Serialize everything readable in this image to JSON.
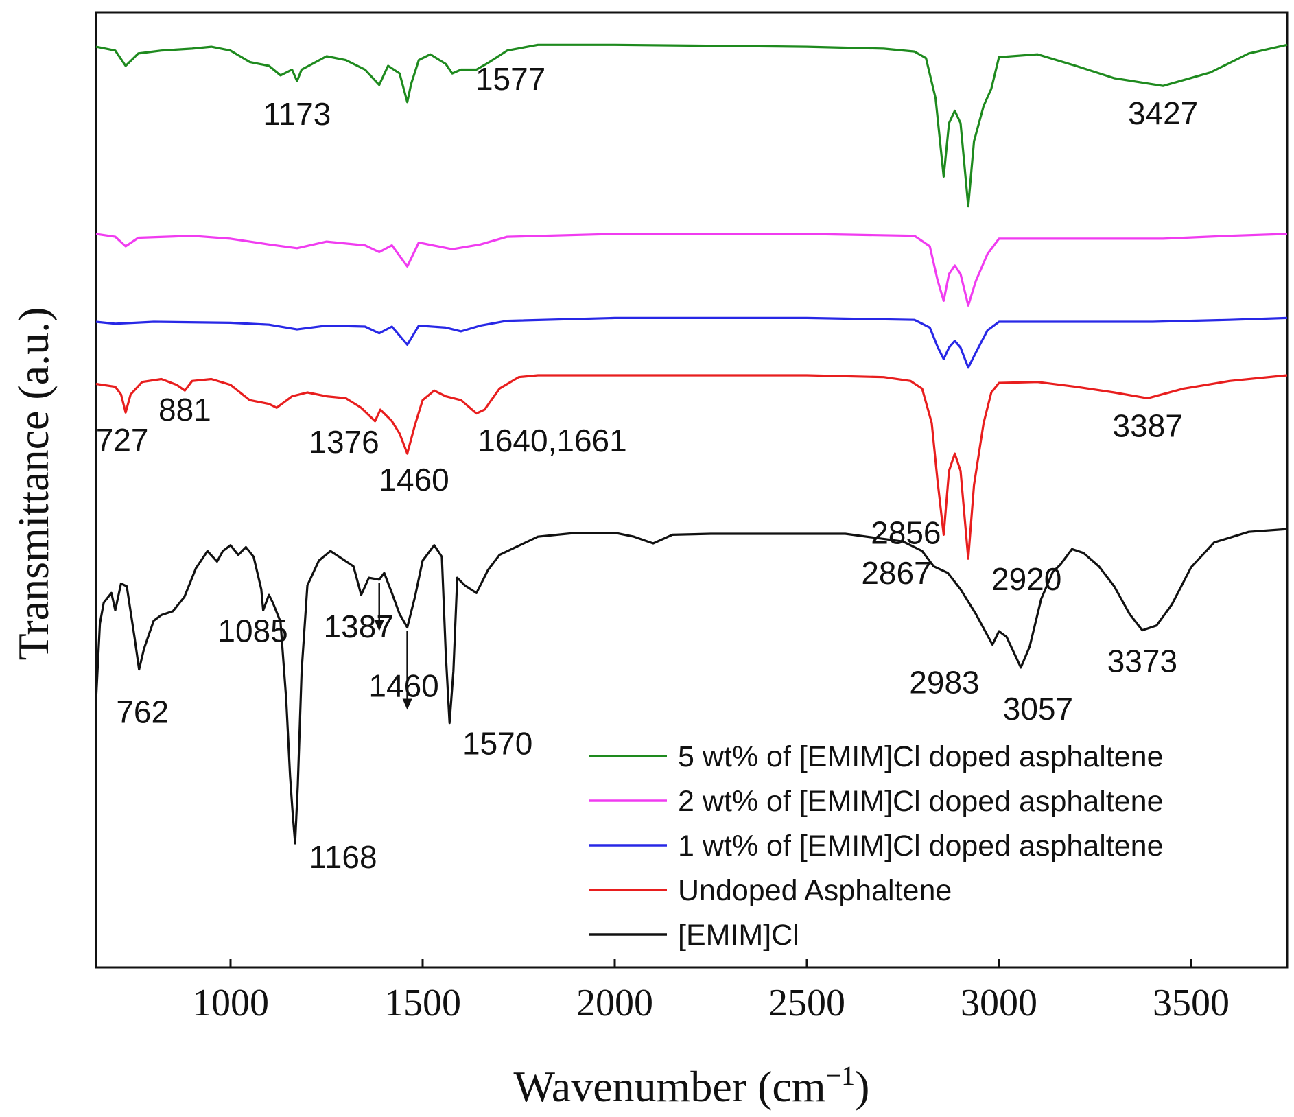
{
  "chart_data": {
    "type": "line",
    "title": "",
    "xlabel": "Wavenumber (cm",
    "xlabel_sup": "−1",
    "xlabel_close": ")",
    "ylabel": "Transmittance (a.u.)",
    "xlim": [
      650,
      3750
    ],
    "xticks": [
      1000,
      1500,
      2000,
      2500,
      3000,
      3500
    ],
    "xtick_labels": [
      "1000",
      "1500",
      "2000",
      "2500",
      "3000",
      "3500"
    ],
    "ylim": [
      0,
      100
    ],
    "yticks": [],
    "grid": false,
    "legend_position": "bottom-right",
    "series": [
      {
        "name": "5 wt% of [EMIM]Cl doped asphaltene",
        "color": "#1e8a1e",
        "points": [
          [
            650,
            96.4
          ],
          [
            700,
            96.0
          ],
          [
            727,
            94.4
          ],
          [
            760,
            95.7
          ],
          [
            820,
            96.0
          ],
          [
            900,
            96.2
          ],
          [
            950,
            96.4
          ],
          [
            1000,
            96.0
          ],
          [
            1050,
            94.8
          ],
          [
            1100,
            94.4
          ],
          [
            1130,
            93.4
          ],
          [
            1160,
            94.0
          ],
          [
            1173,
            92.8
          ],
          [
            1185,
            94.0
          ],
          [
            1250,
            95.4
          ],
          [
            1300,
            95.0
          ],
          [
            1350,
            94.0
          ],
          [
            1387,
            92.4
          ],
          [
            1410,
            94.4
          ],
          [
            1440,
            93.6
          ],
          [
            1460,
            90.6
          ],
          [
            1470,
            92.5
          ],
          [
            1490,
            95.0
          ],
          [
            1520,
            95.6
          ],
          [
            1560,
            94.6
          ],
          [
            1577,
            93.6
          ],
          [
            1600,
            94.0
          ],
          [
            1640,
            94.0
          ],
          [
            1670,
            94.7
          ],
          [
            1720,
            96.0
          ],
          [
            1800,
            96.6
          ],
          [
            2000,
            96.6
          ],
          [
            2500,
            96.4
          ],
          [
            2700,
            96.2
          ],
          [
            2780,
            95.9
          ],
          [
            2810,
            95.2
          ],
          [
            2835,
            91.0
          ],
          [
            2856,
            82.8
          ],
          [
            2870,
            88.4
          ],
          [
            2885,
            89.7
          ],
          [
            2900,
            88.4
          ],
          [
            2920,
            79.7
          ],
          [
            2935,
            86.5
          ],
          [
            2960,
            90.2
          ],
          [
            2980,
            92.0
          ],
          [
            3000,
            95.3
          ],
          [
            3100,
            95.6
          ],
          [
            3200,
            94.4
          ],
          [
            3300,
            93.1
          ],
          [
            3427,
            92.3
          ],
          [
            3550,
            93.7
          ],
          [
            3650,
            95.7
          ],
          [
            3750,
            96.6
          ]
        ]
      },
      {
        "name": "2 wt% of [EMIM]Cl doped asphaltene",
        "color": "#f03cf0",
        "points": [
          [
            650,
            76.8
          ],
          [
            700,
            76.5
          ],
          [
            727,
            75.5
          ],
          [
            760,
            76.4
          ],
          [
            900,
            76.6
          ],
          [
            1000,
            76.3
          ],
          [
            1100,
            75.7
          ],
          [
            1173,
            75.3
          ],
          [
            1250,
            76.0
          ],
          [
            1350,
            75.6
          ],
          [
            1387,
            74.9
          ],
          [
            1420,
            75.6
          ],
          [
            1460,
            73.4
          ],
          [
            1490,
            75.9
          ],
          [
            1577,
            75.2
          ],
          [
            1650,
            75.7
          ],
          [
            1720,
            76.5
          ],
          [
            2000,
            76.8
          ],
          [
            2500,
            76.8
          ],
          [
            2780,
            76.6
          ],
          [
            2820,
            75.5
          ],
          [
            2840,
            72.0
          ],
          [
            2856,
            69.8
          ],
          [
            2870,
            72.6
          ],
          [
            2885,
            73.5
          ],
          [
            2900,
            72.6
          ],
          [
            2920,
            69.3
          ],
          [
            2940,
            71.9
          ],
          [
            2970,
            74.7
          ],
          [
            3000,
            76.3
          ],
          [
            3200,
            76.3
          ],
          [
            3427,
            76.3
          ],
          [
            3600,
            76.6
          ],
          [
            3750,
            76.8
          ]
        ]
      },
      {
        "name": "1 wt% of [EMIM]Cl doped asphaltene",
        "color": "#2828e6",
        "points": [
          [
            650,
            67.6
          ],
          [
            700,
            67.4
          ],
          [
            800,
            67.6
          ],
          [
            1000,
            67.5
          ],
          [
            1100,
            67.3
          ],
          [
            1173,
            66.8
          ],
          [
            1250,
            67.2
          ],
          [
            1350,
            67.1
          ],
          [
            1387,
            66.4
          ],
          [
            1420,
            67.1
          ],
          [
            1460,
            65.2
          ],
          [
            1490,
            67.2
          ],
          [
            1560,
            67.0
          ],
          [
            1600,
            66.6
          ],
          [
            1650,
            67.2
          ],
          [
            1720,
            67.7
          ],
          [
            2000,
            68.0
          ],
          [
            2500,
            68.0
          ],
          [
            2780,
            67.8
          ],
          [
            2820,
            67.0
          ],
          [
            2840,
            65.0
          ],
          [
            2856,
            63.7
          ],
          [
            2870,
            64.9
          ],
          [
            2885,
            65.6
          ],
          [
            2900,
            64.9
          ],
          [
            2920,
            62.8
          ],
          [
            2940,
            64.4
          ],
          [
            2970,
            66.7
          ],
          [
            3000,
            67.6
          ],
          [
            3200,
            67.6
          ],
          [
            3400,
            67.6
          ],
          [
            3600,
            67.8
          ],
          [
            3750,
            68.0
          ]
        ]
      },
      {
        "name": "Undoped Asphaltene",
        "color": "#e81e1e",
        "points": [
          [
            650,
            61.1
          ],
          [
            700,
            60.8
          ],
          [
            715,
            60.0
          ],
          [
            727,
            58.1
          ],
          [
            740,
            60.0
          ],
          [
            770,
            61.3
          ],
          [
            820,
            61.6
          ],
          [
            860,
            61.0
          ],
          [
            881,
            60.4
          ],
          [
            900,
            61.4
          ],
          [
            950,
            61.6
          ],
          [
            1000,
            61.0
          ],
          [
            1050,
            59.4
          ],
          [
            1100,
            59.0
          ],
          [
            1120,
            58.6
          ],
          [
            1160,
            59.8
          ],
          [
            1200,
            60.2
          ],
          [
            1250,
            59.8
          ],
          [
            1300,
            59.6
          ],
          [
            1340,
            58.6
          ],
          [
            1376,
            57.2
          ],
          [
            1390,
            58.4
          ],
          [
            1420,
            57.2
          ],
          [
            1440,
            55.9
          ],
          [
            1460,
            53.8
          ],
          [
            1480,
            56.8
          ],
          [
            1500,
            59.4
          ],
          [
            1530,
            60.4
          ],
          [
            1560,
            59.8
          ],
          [
            1600,
            59.4
          ],
          [
            1640,
            58.0
          ],
          [
            1661,
            58.4
          ],
          [
            1700,
            60.6
          ],
          [
            1750,
            61.8
          ],
          [
            1800,
            62.0
          ],
          [
            2000,
            62.0
          ],
          [
            2500,
            62.0
          ],
          [
            2700,
            61.8
          ],
          [
            2770,
            61.4
          ],
          [
            2800,
            60.6
          ],
          [
            2825,
            57.0
          ],
          [
            2840,
            51.0
          ],
          [
            2856,
            45.3
          ],
          [
            2870,
            52.0
          ],
          [
            2885,
            53.8
          ],
          [
            2900,
            52.0
          ],
          [
            2920,
            42.8
          ],
          [
            2935,
            50.5
          ],
          [
            2960,
            57.0
          ],
          [
            2980,
            60.2
          ],
          [
            3000,
            61.2
          ],
          [
            3100,
            61.3
          ],
          [
            3200,
            60.8
          ],
          [
            3300,
            60.2
          ],
          [
            3387,
            59.6
          ],
          [
            3480,
            60.6
          ],
          [
            3600,
            61.4
          ],
          [
            3750,
            62.0
          ]
        ]
      },
      {
        "name": "[EMIM]Cl",
        "color": "#111111",
        "points": [
          [
            650,
            28.0
          ],
          [
            660,
            36.0
          ],
          [
            670,
            38.2
          ],
          [
            690,
            39.2
          ],
          [
            700,
            37.4
          ],
          [
            715,
            40.2
          ],
          [
            730,
            39.9
          ],
          [
            750,
            34.6
          ],
          [
            762,
            31.2
          ],
          [
            775,
            33.4
          ],
          [
            800,
            36.3
          ],
          [
            820,
            36.9
          ],
          [
            850,
            37.3
          ],
          [
            880,
            38.8
          ],
          [
            910,
            41.8
          ],
          [
            940,
            43.6
          ],
          [
            965,
            42.5
          ],
          [
            980,
            43.6
          ],
          [
            1000,
            44.2
          ],
          [
            1020,
            43.2
          ],
          [
            1040,
            44.0
          ],
          [
            1060,
            43.0
          ],
          [
            1080,
            39.6
          ],
          [
            1085,
            37.4
          ],
          [
            1100,
            39.0
          ],
          [
            1110,
            38.2
          ],
          [
            1130,
            36.2
          ],
          [
            1145,
            28.0
          ],
          [
            1155,
            20.0
          ],
          [
            1162,
            16.0
          ],
          [
            1168,
            13.0
          ],
          [
            1175,
            19.0
          ],
          [
            1185,
            31.0
          ],
          [
            1200,
            40.0
          ],
          [
            1230,
            42.6
          ],
          [
            1260,
            43.6
          ],
          [
            1290,
            42.8
          ],
          [
            1320,
            42.0
          ],
          [
            1340,
            39.0
          ],
          [
            1360,
            40.8
          ],
          [
            1387,
            40.6
          ],
          [
            1400,
            41.3
          ],
          [
            1420,
            39.2
          ],
          [
            1440,
            37.0
          ],
          [
            1460,
            35.6
          ],
          [
            1480,
            38.8
          ],
          [
            1500,
            42.6
          ],
          [
            1530,
            44.2
          ],
          [
            1550,
            43.0
          ],
          [
            1560,
            33.0
          ],
          [
            1570,
            25.6
          ],
          [
            1580,
            31.0
          ],
          [
            1590,
            40.8
          ],
          [
            1610,
            40.0
          ],
          [
            1640,
            39.2
          ],
          [
            1670,
            41.6
          ],
          [
            1700,
            43.2
          ],
          [
            1800,
            45.1
          ],
          [
            1900,
            45.5
          ],
          [
            2000,
            45.5
          ],
          [
            2050,
            45.1
          ],
          [
            2100,
            44.4
          ],
          [
            2150,
            45.3
          ],
          [
            2250,
            45.4
          ],
          [
            2400,
            45.4
          ],
          [
            2600,
            45.4
          ],
          [
            2750,
            44.6
          ],
          [
            2800,
            43.6
          ],
          [
            2830,
            42.0
          ],
          [
            2867,
            41.3
          ],
          [
            2900,
            39.6
          ],
          [
            2940,
            37.0
          ],
          [
            2983,
            33.8
          ],
          [
            3000,
            35.2
          ],
          [
            3020,
            34.6
          ],
          [
            3057,
            31.4
          ],
          [
            3080,
            33.6
          ],
          [
            3110,
            38.6
          ],
          [
            3140,
            41.4
          ],
          [
            3160,
            42.2
          ],
          [
            3190,
            43.8
          ],
          [
            3220,
            43.4
          ],
          [
            3260,
            42.0
          ],
          [
            3300,
            39.9
          ],
          [
            3340,
            37.0
          ],
          [
            3373,
            35.3
          ],
          [
            3410,
            35.8
          ],
          [
            3450,
            38.0
          ],
          [
            3500,
            41.9
          ],
          [
            3560,
            44.5
          ],
          [
            3650,
            45.6
          ],
          [
            3750,
            45.9
          ]
        ]
      }
    ],
    "annotations": [
      {
        "text": "1173",
        "series": 0,
        "x": 1173
      },
      {
        "text": "1577",
        "series": 0,
        "x": 1577
      },
      {
        "text": "3427",
        "series": 0,
        "x": 3427
      },
      {
        "text": "727",
        "series": 3,
        "x": 727
      },
      {
        "text": "881",
        "series": 3,
        "x": 881
      },
      {
        "text": "1376",
        "series": 3,
        "x": 1376
      },
      {
        "text": "1460",
        "series": 3,
        "x": 1460
      },
      {
        "text": "1640,1661",
        "series": 3,
        "x": 1650
      },
      {
        "text": "2856",
        "series": 3,
        "x": 2856
      },
      {
        "text": "2920",
        "series": 3,
        "x": 2920
      },
      {
        "text": "3387",
        "series": 3,
        "x": 3387
      },
      {
        "text": "762",
        "series": 4,
        "x": 762
      },
      {
        "text": "1085",
        "series": 4,
        "x": 1085
      },
      {
        "text": "1168",
        "series": 4,
        "x": 1168
      },
      {
        "text": "1387",
        "series": 4,
        "x": 1387,
        "arrow": true
      },
      {
        "text": "1460",
        "series": 4,
        "x": 1460,
        "arrow": true
      },
      {
        "text": "1570",
        "series": 4,
        "x": 1570
      },
      {
        "text": "2867",
        "series": 4,
        "x": 2867
      },
      {
        "text": "2983",
        "series": 4,
        "x": 2983
      },
      {
        "text": "3057",
        "series": 4,
        "x": 3057
      },
      {
        "text": "3373",
        "series": 4,
        "x": 3373
      }
    ]
  }
}
